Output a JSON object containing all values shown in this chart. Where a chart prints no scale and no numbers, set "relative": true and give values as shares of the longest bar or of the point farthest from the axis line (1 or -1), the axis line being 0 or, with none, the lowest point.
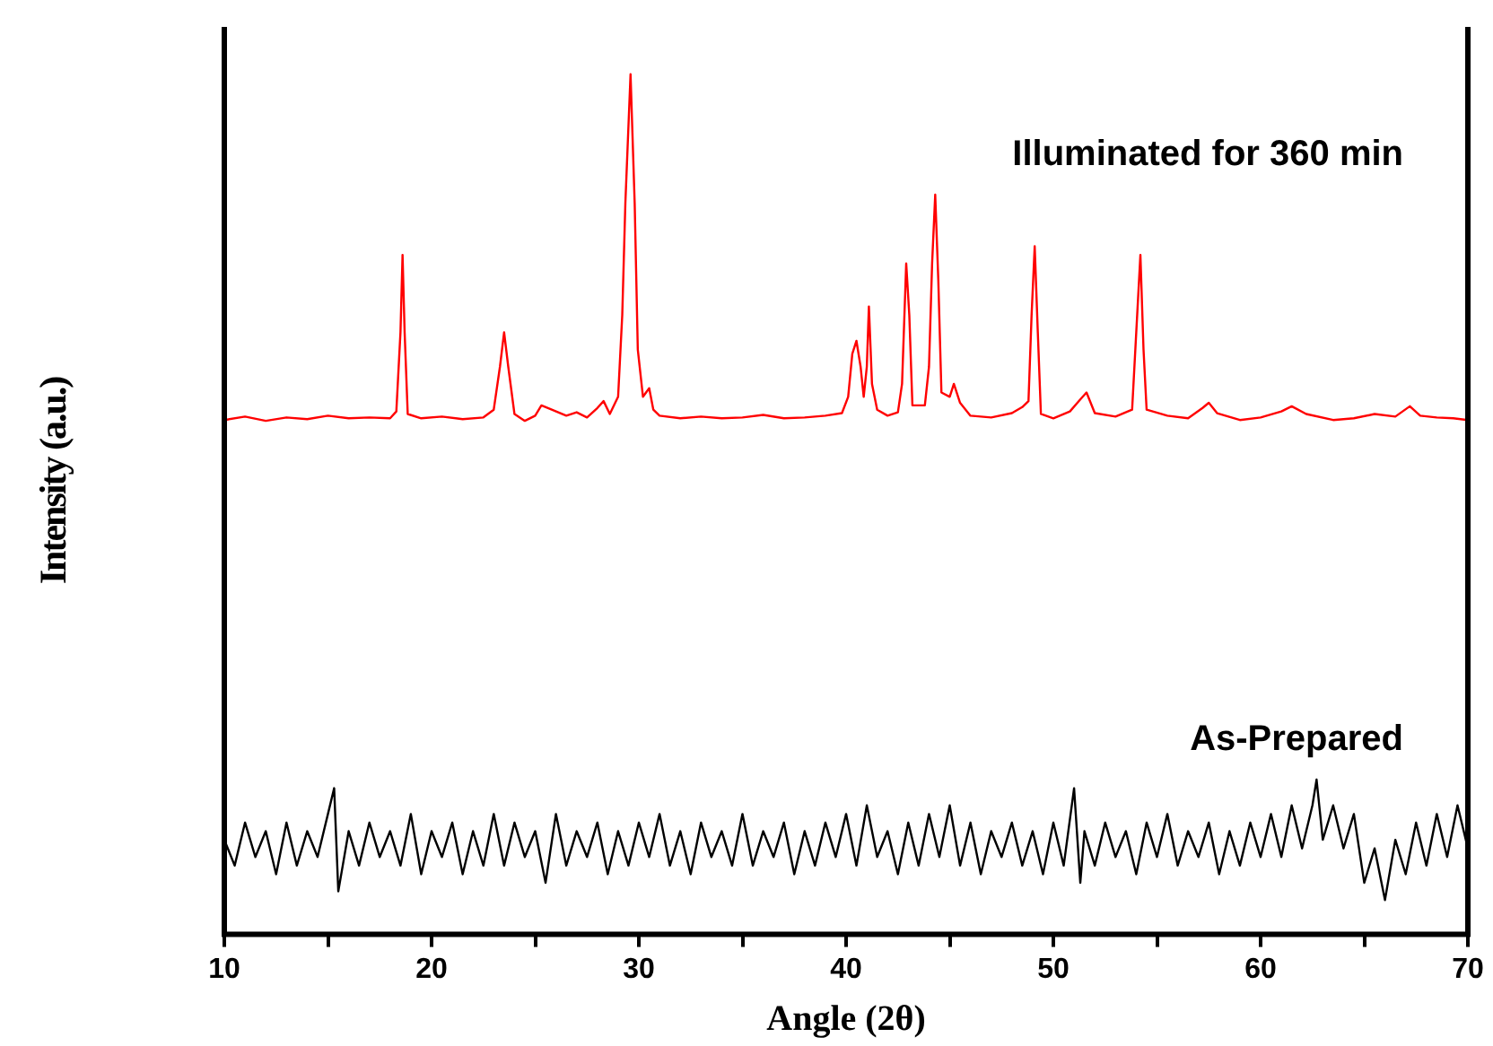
{
  "chart_data": {
    "type": "line",
    "xlabel": "Angle (2θ)",
    "ylabel": "Intensity (a.u.)",
    "relative": true,
    "grid": false,
    "legend": false,
    "marker": "none",
    "line_style": "solid",
    "xlim": [
      10,
      70
    ],
    "xticks": [
      10,
      {
        "value": 15,
        "label": null
      },
      20,
      {
        "value": 25,
        "label": null
      },
      30,
      {
        "value": 35,
        "label": null
      },
      40,
      {
        "value": 45,
        "label": null
      },
      50,
      {
        "value": 55,
        "label": null
      },
      60,
      {
        "value": 65,
        "label": null
      },
      70
    ],
    "series": [
      {
        "name": "Illuminated for 360 min",
        "color": "#ff0000",
        "x": [
          10,
          11,
          12,
          13,
          14,
          15,
          16,
          17,
          18,
          18.3,
          18.5,
          18.6,
          18.7,
          18.85,
          19.5,
          20.5,
          21.5,
          22.5,
          23.0,
          23.3,
          23.5,
          23.7,
          24.0,
          24.5,
          25.0,
          25.3,
          25.8,
          26.5,
          27.0,
          27.5,
          28.0,
          28.3,
          28.6,
          29.0,
          29.2,
          29.35,
          29.6,
          29.8,
          29.95,
          30.2,
          30.5,
          30.7,
          31.0,
          32,
          33,
          34,
          35,
          36,
          37,
          38,
          39,
          39.8,
          40.1,
          40.3,
          40.5,
          40.7,
          40.85,
          41.0,
          41.1,
          41.25,
          41.5,
          42.0,
          42.5,
          42.7,
          42.9,
          43.05,
          43.2,
          43.8,
          44.0,
          44.15,
          44.3,
          44.45,
          44.6,
          45.0,
          45.2,
          45.5,
          46.0,
          47.0,
          48.0,
          48.5,
          48.8,
          48.95,
          49.1,
          49.25,
          49.4,
          50.0,
          50.8,
          51.3,
          51.6,
          52.0,
          53.0,
          53.8,
          54.0,
          54.2,
          54.35,
          54.5,
          55.5,
          56.5,
          57.2,
          57.5,
          57.9,
          59,
          60,
          61.0,
          61.5,
          62.2,
          63.5,
          64.5,
          65.5,
          66.5,
          67.2,
          67.7,
          68.5,
          69.3,
          70
        ],
        "values": [
          0.598,
          0.602,
          0.597,
          0.601,
          0.599,
          0.603,
          0.6,
          0.601,
          0.6,
          0.608,
          0.7,
          0.79,
          0.7,
          0.605,
          0.6,
          0.602,
          0.599,
          0.601,
          0.61,
          0.66,
          0.7,
          0.66,
          0.605,
          0.597,
          0.603,
          0.615,
          0.61,
          0.603,
          0.607,
          0.601,
          0.612,
          0.62,
          0.605,
          0.625,
          0.72,
          0.85,
          1.0,
          0.85,
          0.68,
          0.625,
          0.635,
          0.61,
          0.603,
          0.6,
          0.602,
          0.6,
          0.601,
          0.604,
          0.6,
          0.601,
          0.603,
          0.606,
          0.625,
          0.675,
          0.69,
          0.66,
          0.625,
          0.66,
          0.73,
          0.64,
          0.61,
          0.603,
          0.607,
          0.64,
          0.78,
          0.72,
          0.615,
          0.615,
          0.66,
          0.78,
          0.86,
          0.76,
          0.63,
          0.625,
          0.64,
          0.618,
          0.603,
          0.601,
          0.606,
          0.613,
          0.62,
          0.72,
          0.8,
          0.7,
          0.605,
          0.6,
          0.608,
          0.622,
          0.63,
          0.606,
          0.602,
          0.61,
          0.7,
          0.79,
          0.68,
          0.61,
          0.603,
          0.6,
          0.612,
          0.618,
          0.606,
          0.598,
          0.601,
          0.608,
          0.614,
          0.605,
          0.598,
          0.6,
          0.605,
          0.602,
          0.614,
          0.603,
          0.601,
          0.6,
          0.598
        ]
      },
      {
        "name": "As-Prepared",
        "color": "#000000",
        "x": [
          10,
          10.5,
          11,
          11.5,
          12,
          12.5,
          13,
          13.5,
          14,
          14.5,
          15,
          15.3,
          15.5,
          16,
          16.5,
          17,
          17.5,
          18,
          18.5,
          19,
          19.5,
          20,
          20.5,
          21,
          21.5,
          22,
          22.5,
          23,
          23.5,
          24,
          24.5,
          25,
          25.5,
          26,
          26.5,
          27,
          27.5,
          28,
          28.5,
          29,
          29.5,
          30,
          30.5,
          31,
          31.5,
          32,
          32.5,
          33,
          33.5,
          34,
          34.5,
          35,
          35.5,
          36,
          36.5,
          37,
          37.5,
          38,
          38.5,
          39,
          39.5,
          40,
          40.5,
          41,
          41.5,
          42,
          42.5,
          43,
          43.5,
          44,
          44.5,
          45,
          45.5,
          46,
          46.5,
          47,
          47.5,
          48,
          48.5,
          49,
          49.5,
          50,
          50.5,
          51,
          51.3,
          51.5,
          52,
          52.5,
          53,
          53.5,
          54,
          54.5,
          55,
          55.5,
          56,
          56.5,
          57,
          57.5,
          58,
          58.5,
          59,
          59.5,
          60,
          60.5,
          61,
          61.5,
          62,
          62.5,
          62.7,
          63,
          63.5,
          64,
          64.5,
          65,
          65.5,
          66,
          66.5,
          67,
          67.5,
          68,
          68.5,
          69,
          69.5,
          70
        ],
        "values": [
          0.11,
          0.08,
          0.13,
          0.09,
          0.12,
          0.07,
          0.13,
          0.08,
          0.12,
          0.09,
          0.14,
          0.17,
          0.05,
          0.12,
          0.08,
          0.13,
          0.09,
          0.12,
          0.08,
          0.14,
          0.07,
          0.12,
          0.09,
          0.13,
          0.07,
          0.12,
          0.08,
          0.14,
          0.08,
          0.13,
          0.09,
          0.12,
          0.06,
          0.14,
          0.08,
          0.12,
          0.09,
          0.13,
          0.07,
          0.12,
          0.08,
          0.13,
          0.09,
          0.14,
          0.08,
          0.12,
          0.07,
          0.13,
          0.09,
          0.12,
          0.08,
          0.14,
          0.08,
          0.12,
          0.09,
          0.13,
          0.07,
          0.12,
          0.08,
          0.13,
          0.09,
          0.14,
          0.08,
          0.15,
          0.09,
          0.12,
          0.07,
          0.13,
          0.08,
          0.14,
          0.09,
          0.15,
          0.08,
          0.13,
          0.07,
          0.12,
          0.09,
          0.13,
          0.08,
          0.12,
          0.07,
          0.13,
          0.08,
          0.17,
          0.06,
          0.12,
          0.08,
          0.13,
          0.09,
          0.12,
          0.07,
          0.13,
          0.09,
          0.14,
          0.08,
          0.12,
          0.09,
          0.13,
          0.07,
          0.12,
          0.08,
          0.13,
          0.09,
          0.14,
          0.09,
          0.15,
          0.1,
          0.15,
          0.18,
          0.11,
          0.15,
          0.1,
          0.14,
          0.06,
          0.1,
          0.04,
          0.11,
          0.07,
          0.13,
          0.08,
          0.14,
          0.09,
          0.15,
          0.1
        ]
      }
    ]
  }
}
